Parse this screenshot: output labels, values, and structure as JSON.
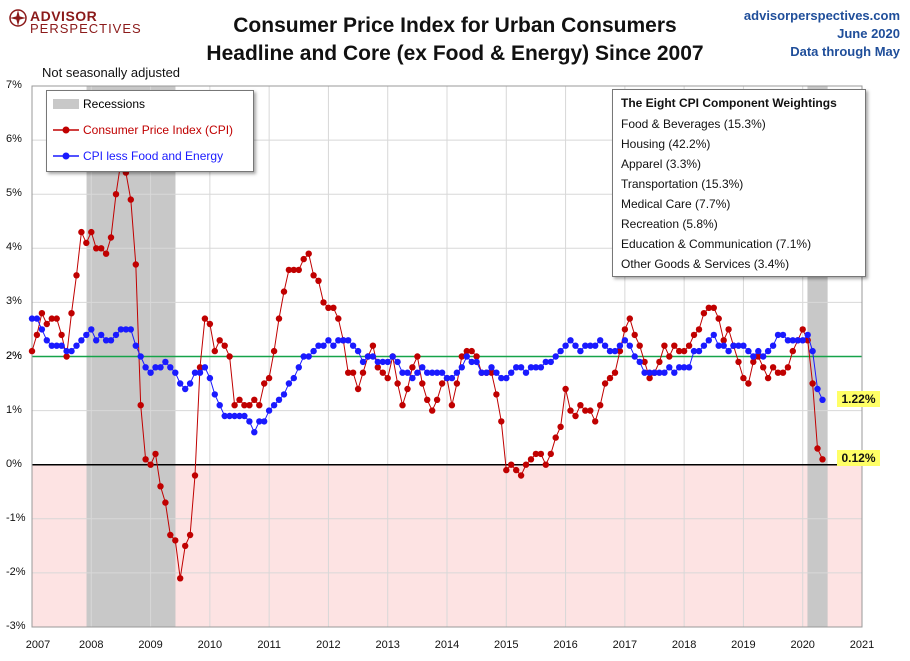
{
  "header": {
    "title_line1": "Consumer Price Index for Urban Consumers",
    "title_line2": "Headline and Core (ex Food & Energy) Since 2007",
    "logo_main": "ADVISOR",
    "logo_sub": "PERSPECTIVES",
    "source_site": "advisorperspectives.com",
    "source_date": "June 2020",
    "source_through": "Data through May"
  },
  "note": "Not seasonally adjusted",
  "legend": {
    "recessions": "Recessions",
    "cpi": "Consumer Price Index (CPI)",
    "core": "CPI less Food and Energy"
  },
  "weightings": {
    "title": "The Eight CPI Component Weightings",
    "items": [
      "Food & Beverages (15.3%)",
      "Housing (42.2%)",
      "Apparel (3.3%)",
      "Transportation (15.3%)",
      "Medical Care (7.7%)",
      "Recreation (5.8%)",
      "Education & Communication (7.1%)",
      "Other Goods & Services (3.4%)"
    ]
  },
  "colors": {
    "cpi": "#c00000",
    "core": "#1a1aff",
    "recession": "#c8c8c8",
    "negative_zone": "#fde3e3",
    "target_line": "#16a34a",
    "zero_line": "#000000",
    "tag_bg": "#ffff66"
  },
  "chart_data": {
    "type": "line",
    "xlim": [
      2007,
      2021
    ],
    "ylim": [
      -3,
      7
    ],
    "x_ticks": [
      "2007",
      "2008",
      "2009",
      "2010",
      "2011",
      "2012",
      "2013",
      "2014",
      "2015",
      "2016",
      "2017",
      "2018",
      "2019",
      "2020",
      "2021"
    ],
    "y_ticks": [
      "-3%",
      "-2%",
      "-1%",
      "0%",
      "1%",
      "2%",
      "3%",
      "4%",
      "5%",
      "6%",
      "7%"
    ],
    "y_tick_values": [
      -3,
      -2,
      -1,
      0,
      1,
      2,
      3,
      4,
      5,
      6,
      7
    ],
    "target_line": {
      "value": 2,
      "label": "2%"
    },
    "recessions": [
      {
        "start": 2007.92,
        "end": 2009.42
      },
      {
        "start": 2020.08,
        "end": 2020.42
      }
    ],
    "annotations": [
      {
        "text": "1.22%",
        "series": "core"
      },
      {
        "text": "0.12%",
        "series": "cpi"
      }
    ],
    "start": "2007-01",
    "series": [
      {
        "name": "Consumer Price Index (CPI)",
        "values": [
          2.1,
          2.4,
          2.8,
          2.6,
          2.7,
          2.7,
          2.4,
          2.0,
          2.8,
          3.5,
          4.3,
          4.1,
          4.3,
          4.0,
          4.0,
          3.9,
          4.2,
          5.0,
          5.6,
          5.4,
          4.9,
          3.7,
          1.1,
          0.1,
          0.0,
          0.2,
          -0.4,
          -0.7,
          -1.3,
          -1.4,
          -2.1,
          -1.5,
          -1.3,
          -0.2,
          1.8,
          2.7,
          2.6,
          2.1,
          2.3,
          2.2,
          2.0,
          1.1,
          1.2,
          1.1,
          1.1,
          1.2,
          1.1,
          1.5,
          1.6,
          2.1,
          2.7,
          3.2,
          3.6,
          3.6,
          3.6,
          3.8,
          3.9,
          3.5,
          3.4,
          3.0,
          2.9,
          2.9,
          2.7,
          2.3,
          1.7,
          1.7,
          1.4,
          1.7,
          2.0,
          2.2,
          1.8,
          1.7,
          1.6,
          2.0,
          1.5,
          1.1,
          1.4,
          1.8,
          2.0,
          1.5,
          1.2,
          1.0,
          1.2,
          1.5,
          1.6,
          1.1,
          1.5,
          2.0,
          2.1,
          2.1,
          2.0,
          1.7,
          1.7,
          1.7,
          1.3,
          0.8,
          -0.1,
          0.0,
          -0.1,
          -0.2,
          0.0,
          0.1,
          0.2,
          0.2,
          0.0,
          0.2,
          0.5,
          0.7,
          1.4,
          1.0,
          0.9,
          1.1,
          1.0,
          1.0,
          0.8,
          1.1,
          1.5,
          1.6,
          1.7,
          2.1,
          2.5,
          2.7,
          2.4,
          2.2,
          1.9,
          1.6,
          1.7,
          1.9,
          2.2,
          2.0,
          2.2,
          2.1,
          2.1,
          2.2,
          2.4,
          2.5,
          2.8,
          2.9,
          2.9,
          2.7,
          2.3,
          2.5,
          2.2,
          1.9,
          1.6,
          1.5,
          1.9,
          2.0,
          1.8,
          1.6,
          1.8,
          1.7,
          1.7,
          1.8,
          2.1,
          2.3,
          2.5,
          2.3,
          1.5,
          0.3,
          0.1
        ]
      },
      {
        "name": "CPI less Food and Energy",
        "values": [
          2.7,
          2.7,
          2.5,
          2.3,
          2.2,
          2.2,
          2.2,
          2.1,
          2.1,
          2.2,
          2.3,
          2.4,
          2.5,
          2.3,
          2.4,
          2.3,
          2.3,
          2.4,
          2.5,
          2.5,
          2.5,
          2.2,
          2.0,
          1.8,
          1.7,
          1.8,
          1.8,
          1.9,
          1.8,
          1.7,
          1.5,
          1.4,
          1.5,
          1.7,
          1.7,
          1.8,
          1.6,
          1.3,
          1.1,
          0.9,
          0.9,
          0.9,
          0.9,
          0.9,
          0.8,
          0.6,
          0.8,
          0.8,
          1.0,
          1.1,
          1.2,
          1.3,
          1.5,
          1.6,
          1.8,
          2.0,
          2.0,
          2.1,
          2.2,
          2.2,
          2.3,
          2.2,
          2.3,
          2.3,
          2.3,
          2.2,
          2.1,
          1.9,
          2.0,
          2.0,
          1.9,
          1.9,
          1.9,
          2.0,
          1.9,
          1.7,
          1.7,
          1.6,
          1.7,
          1.8,
          1.7,
          1.7,
          1.7,
          1.7,
          1.6,
          1.6,
          1.7,
          1.8,
          2.0,
          1.9,
          1.9,
          1.7,
          1.7,
          1.8,
          1.7,
          1.6,
          1.6,
          1.7,
          1.8,
          1.8,
          1.7,
          1.8,
          1.8,
          1.8,
          1.9,
          1.9,
          2.0,
          2.1,
          2.2,
          2.3,
          2.2,
          2.1,
          2.2,
          2.2,
          2.2,
          2.3,
          2.2,
          2.1,
          2.1,
          2.2,
          2.3,
          2.2,
          2.0,
          1.9,
          1.7,
          1.7,
          1.7,
          1.7,
          1.7,
          1.8,
          1.7,
          1.8,
          1.8,
          1.8,
          2.1,
          2.1,
          2.2,
          2.3,
          2.4,
          2.2,
          2.2,
          2.1,
          2.2,
          2.2,
          2.2,
          2.1,
          2.0,
          2.1,
          2.0,
          2.1,
          2.2,
          2.4,
          2.4,
          2.3,
          2.3,
          2.3,
          2.3,
          2.4,
          2.1,
          1.4,
          1.2
        ]
      }
    ]
  }
}
